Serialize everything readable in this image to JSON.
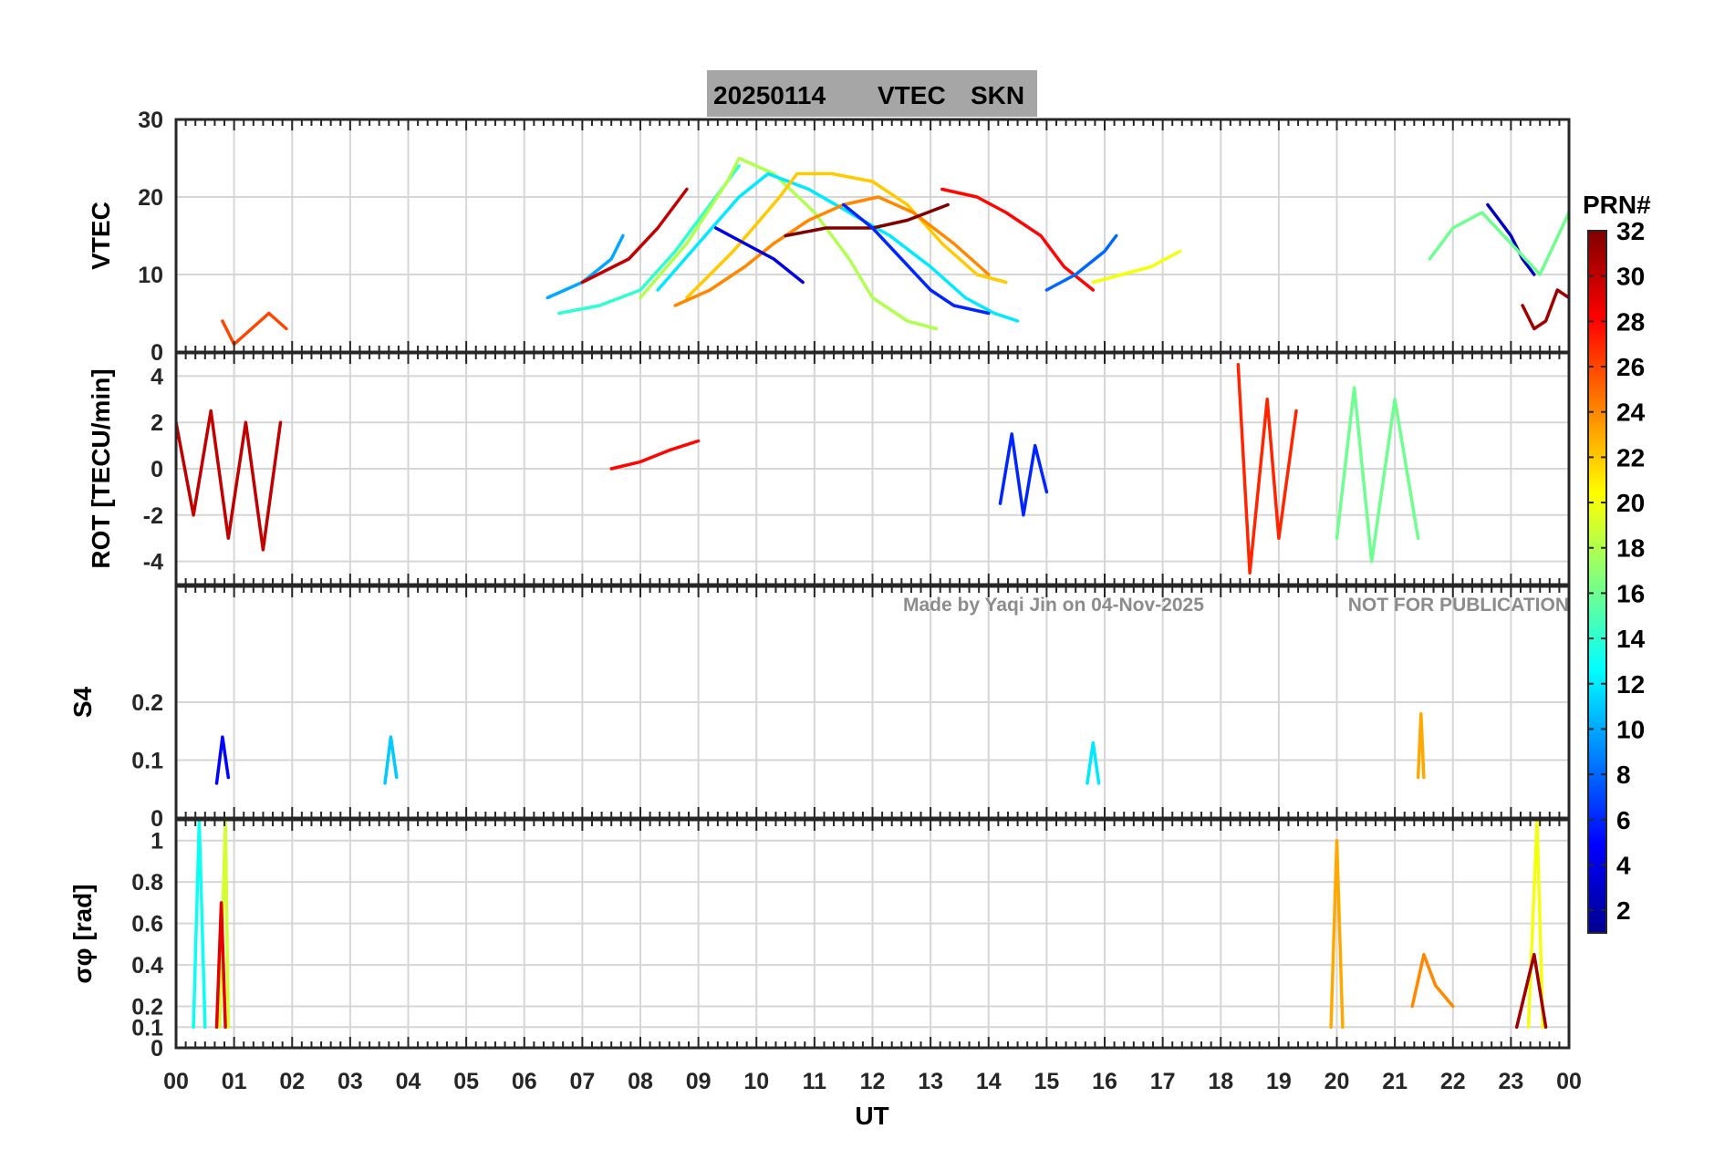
{
  "title": {
    "date": "20250114",
    "quantity": "VTEC",
    "station": "SKN"
  },
  "watermark": {
    "made_by": "Made by Yaqi Jin on 04-Nov-2025",
    "note": "NOT FOR PUBLICATION"
  },
  "colorbar": {
    "title": "PRN#",
    "ticks": [
      "2",
      "4",
      "6",
      "8",
      "10",
      "12",
      "14",
      "16",
      "18",
      "20",
      "22",
      "24",
      "26",
      "28",
      "30",
      "32"
    ],
    "range": [
      1,
      32
    ],
    "colormap": "jet"
  },
  "x_axis": {
    "label": "UT",
    "range": [
      0,
      24
    ],
    "ticks": [
      "00",
      "01",
      "02",
      "03",
      "04",
      "05",
      "06",
      "07",
      "08",
      "09",
      "10",
      "11",
      "12",
      "13",
      "14",
      "15",
      "16",
      "17",
      "18",
      "19",
      "20",
      "21",
      "22",
      "23",
      "00"
    ]
  },
  "chart_data": [
    {
      "type": "line",
      "panel": "vtec",
      "ylabel": "VTEC",
      "ylim": [
        0,
        30
      ],
      "yticks": [
        "0",
        "10",
        "20",
        "30"
      ],
      "grid": true,
      "series": [
        {
          "prn": 10,
          "x": [
            6.4,
            7.0,
            7.5,
            7.7
          ],
          "y": [
            7,
            9,
            12,
            15
          ]
        },
        {
          "prn": 14,
          "x": [
            6.6,
            7.3,
            8.0,
            8.6,
            9.2,
            9.7
          ],
          "y": [
            5,
            6,
            8,
            13,
            19,
            24
          ]
        },
        {
          "prn": 18,
          "x": [
            8.0,
            8.8,
            9.5,
            9.7,
            10.3,
            11.0,
            11.6,
            12.0,
            12.6,
            13.1
          ],
          "y": [
            7,
            14,
            22,
            25,
            23,
            18,
            12,
            7,
            4,
            3
          ]
        },
        {
          "prn": 12,
          "x": [
            8.3,
            9.0,
            9.7,
            10.2,
            10.9,
            11.6,
            12.3,
            13.0,
            13.6,
            14.1,
            14.5
          ],
          "y": [
            8,
            14,
            20,
            23,
            21,
            18,
            15,
            11,
            7,
            5,
            4
          ]
        },
        {
          "prn": 22,
          "x": [
            8.8,
            9.6,
            10.4,
            10.7,
            11.3,
            12.0,
            12.6,
            13.2,
            13.8,
            14.3
          ],
          "y": [
            7,
            13,
            20,
            23,
            23,
            22,
            19,
            14,
            10,
            9
          ]
        },
        {
          "prn": 24,
          "x": [
            8.6,
            9.2,
            9.8,
            10.3,
            10.9,
            11.5,
            12.1,
            12.7,
            13.4,
            14.0
          ],
          "y": [
            6,
            8,
            11,
            14,
            17,
            19,
            20,
            18,
            14,
            10
          ]
        },
        {
          "prn": 30,
          "x": [
            7.0,
            7.8,
            8.3,
            8.8
          ],
          "y": [
            9,
            12,
            16,
            21
          ]
        },
        {
          "prn": 32,
          "x": [
            10.5,
            11.2,
            12.0,
            12.6,
            13.3
          ],
          "y": [
            15,
            16,
            16,
            17,
            19
          ]
        },
        {
          "prn": 6,
          "x": [
            11.5,
            12.0,
            12.5,
            13.0,
            13.4,
            14.0
          ],
          "y": [
            19,
            16,
            12,
            8,
            6,
            5
          ]
        },
        {
          "prn": 28,
          "x": [
            13.2,
            13.8,
            14.3,
            14.9,
            15.3,
            15.8
          ],
          "y": [
            21,
            20,
            18,
            15,
            11,
            8
          ]
        },
        {
          "prn": 4,
          "x": [
            9.3,
            9.8,
            10.3,
            10.8
          ],
          "y": [
            16,
            14,
            12,
            9
          ]
        },
        {
          "prn": 20,
          "x": [
            15.8,
            16.3,
            16.8,
            17.3
          ],
          "y": [
            9,
            10,
            11,
            13
          ]
        },
        {
          "prn": 8,
          "x": [
            15.0,
            15.5,
            16.0,
            16.2
          ],
          "y": [
            8,
            10,
            13,
            15
          ]
        },
        {
          "prn": 3,
          "x": [
            22.6,
            22.8,
            23.0,
            23.2,
            23.4
          ],
          "y": [
            19,
            17,
            15,
            12,
            10
          ]
        },
        {
          "prn": 16,
          "x": [
            21.6,
            22.0,
            22.5,
            23.0,
            23.5,
            24.0
          ],
          "y": [
            12,
            16,
            18,
            14,
            10,
            18
          ]
        },
        {
          "prn": 31,
          "x": [
            23.2,
            23.4,
            23.6,
            23.8,
            24.0
          ],
          "y": [
            6,
            3,
            4,
            8,
            7
          ]
        },
        {
          "prn": 26,
          "x": [
            0.8,
            1.0,
            1.3,
            1.6,
            1.9
          ],
          "y": [
            4,
            1,
            3,
            5,
            3
          ]
        }
      ]
    },
    {
      "type": "line",
      "panel": "rot",
      "ylabel": "ROT [TECU/min]",
      "ylim": [
        -5,
        5
      ],
      "yticks": [
        "-4",
        "-2",
        "0",
        "2",
        "4"
      ],
      "grid": true,
      "series": [
        {
          "prn": 30,
          "x": [
            0.0,
            0.3,
            0.6,
            0.9,
            1.2,
            1.5,
            1.8
          ],
          "y": [
            2.0,
            -2.0,
            2.5,
            -3.0,
            2.0,
            -3.5,
            2.0
          ]
        },
        {
          "prn": 27,
          "x": [
            18.3,
            18.5,
            18.8,
            19.0,
            19.3
          ],
          "y": [
            4.5,
            -4.5,
            3.0,
            -3.0,
            2.5
          ]
        },
        {
          "prn": 16,
          "x": [
            20.0,
            20.3,
            20.6,
            21.0,
            21.4
          ],
          "y": [
            -3.0,
            3.5,
            -4.0,
            3.0,
            -3.0
          ]
        },
        {
          "prn": 6,
          "x": [
            14.2,
            14.4,
            14.6,
            14.8,
            15.0
          ],
          "y": [
            -1.5,
            1.5,
            -2.0,
            1.0,
            -1.0
          ]
        },
        {
          "prn": 28,
          "x": [
            7.5,
            8.0,
            8.5,
            9.0
          ],
          "y": [
            0.0,
            0.3,
            0.8,
            1.2
          ]
        }
      ]
    },
    {
      "type": "line",
      "panel": "s4",
      "ylabel": "S4",
      "ylim": [
        0,
        0.4
      ],
      "yticks": [
        "0",
        "0.1",
        "0.2"
      ],
      "grid": true,
      "series": [
        {
          "prn": 5,
          "x": [
            0.7,
            0.8,
            0.9
          ],
          "y": [
            0.06,
            0.14,
            0.07
          ]
        },
        {
          "prn": 11,
          "x": [
            3.6,
            3.7,
            3.8
          ],
          "y": [
            0.06,
            0.14,
            0.07
          ]
        },
        {
          "prn": 12,
          "x": [
            15.7,
            15.8,
            15.9
          ],
          "y": [
            0.06,
            0.13,
            0.06
          ]
        },
        {
          "prn": 23,
          "x": [
            21.4,
            21.45,
            21.5
          ],
          "y": [
            0.07,
            0.18,
            0.07
          ]
        }
      ]
    },
    {
      "type": "line",
      "panel": "sigma_phi",
      "ylabel": "σφ [rad]",
      "ylim": [
        0,
        1.1
      ],
      "yticks": [
        "0",
        "0.1",
        "0.2",
        "0.4",
        "0.6",
        "0.8",
        "1"
      ],
      "grid": true,
      "series": [
        {
          "prn": 13,
          "x": [
            0.3,
            0.4,
            0.5
          ],
          "y": [
            0.1,
            1.1,
            0.1
          ]
        },
        {
          "prn": 19,
          "x": [
            0.75,
            0.85,
            0.9
          ],
          "y": [
            0.1,
            1.1,
            0.1
          ]
        },
        {
          "prn": 29,
          "x": [
            0.7,
            0.78,
            0.85
          ],
          "y": [
            0.1,
            0.7,
            0.1
          ]
        },
        {
          "prn": 23,
          "x": [
            19.9,
            20.0,
            20.1
          ],
          "y": [
            0.1,
            1.0,
            0.1
          ]
        },
        {
          "prn": 24,
          "x": [
            21.3,
            21.5,
            21.7,
            22.0
          ],
          "y": [
            0.2,
            0.45,
            0.3,
            0.2
          ]
        },
        {
          "prn": 20,
          "x": [
            23.3,
            23.45,
            23.55
          ],
          "y": [
            0.1,
            1.1,
            0.1
          ]
        },
        {
          "prn": 31,
          "x": [
            23.1,
            23.4,
            23.6
          ],
          "y": [
            0.1,
            0.45,
            0.1
          ]
        }
      ]
    }
  ]
}
